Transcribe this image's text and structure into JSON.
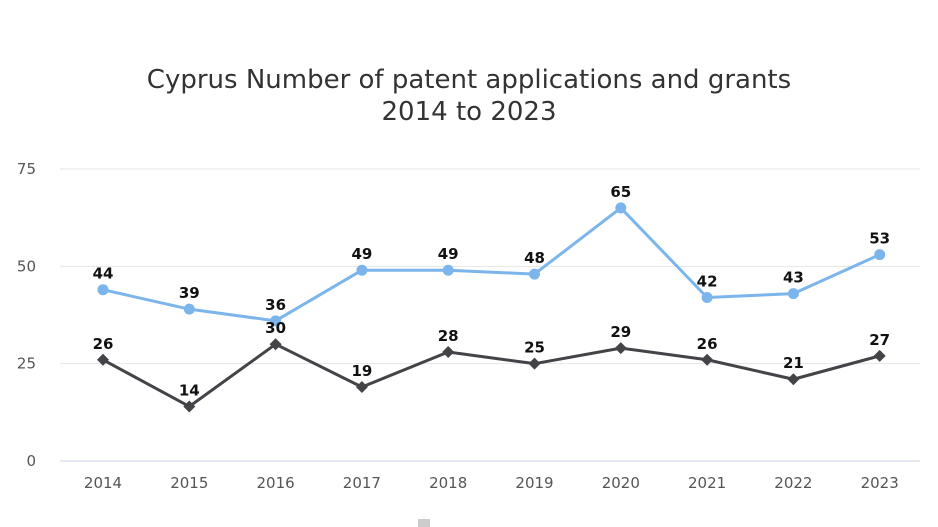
{
  "chart_data": {
    "type": "line",
    "title_line1": "Cyprus Number of patent applications and grants",
    "title_line2": "2014 to 2023",
    "xlabel": "",
    "ylabel": "",
    "categories": [
      "2014",
      "2015",
      "2016",
      "2017",
      "2018",
      "2019",
      "2020",
      "2021",
      "2022",
      "2023"
    ],
    "ylim": [
      0,
      75
    ],
    "yticks": [
      0,
      25,
      50,
      75
    ],
    "grid": true,
    "series": [
      {
        "values": [
          44,
          39,
          36,
          49,
          49,
          48,
          65,
          42,
          43,
          53
        ],
        "color": "#7cb5ec",
        "marker": "circle"
      },
      {
        "values": [
          26,
          14,
          30,
          19,
          28,
          25,
          29,
          26,
          21,
          27
        ],
        "color": "#434348",
        "marker": "diamond"
      }
    ]
  }
}
